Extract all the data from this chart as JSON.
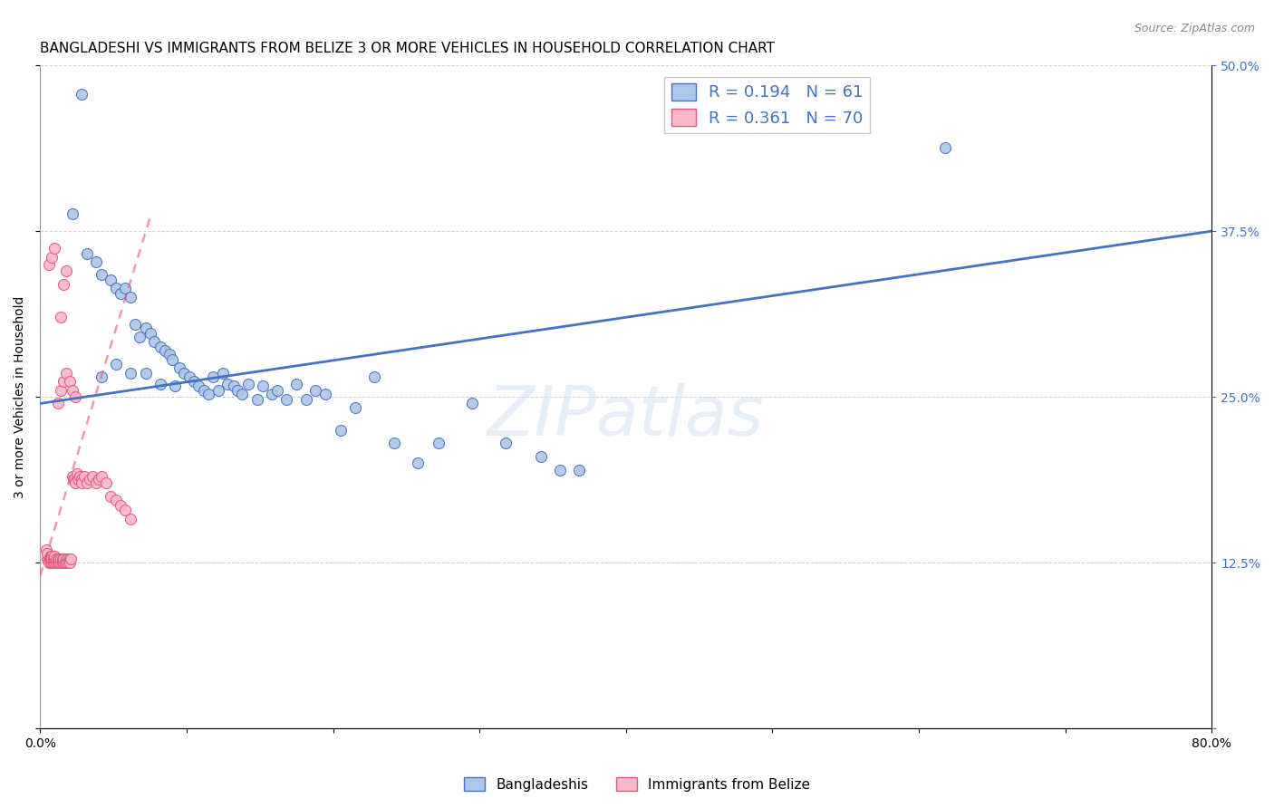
{
  "title": "BANGLADESHI VS IMMIGRANTS FROM BELIZE 3 OR MORE VEHICLES IN HOUSEHOLD CORRELATION CHART",
  "source": "Source: ZipAtlas.com",
  "ylabel": "3 or more Vehicles in Household",
  "xlim": [
    0.0,
    0.8
  ],
  "ylim": [
    0.0,
    0.5
  ],
  "xticks": [
    0.0,
    0.1,
    0.2,
    0.3,
    0.4,
    0.5,
    0.6,
    0.7,
    0.8
  ],
  "xticklabels": [
    "0.0%",
    "",
    "",
    "",
    "",
    "",
    "",
    "",
    "80.0%"
  ],
  "yticks": [
    0.0,
    0.125,
    0.25,
    0.375,
    0.5
  ],
  "yticklabels": [
    "",
    "12.5%",
    "25.0%",
    "37.5%",
    "50.0%"
  ],
  "legend_labels": [
    "Bangladeshis",
    "Immigrants from Belize"
  ],
  "series1_color": "#aec6e8",
  "series2_color": "#f9b8cc",
  "trendline1_color": "#4472c4",
  "trendline2_color": "#e8547a",
  "R1": 0.194,
  "N1": 61,
  "R2": 0.361,
  "N2": 70,
  "watermark": "ZIPatlas",
  "grid_color": "#d0d0d0",
  "title_fontsize": 11,
  "axis_label_fontsize": 10,
  "tick_fontsize": 10,
  "bangladeshis_x": [
    0.028,
    0.022,
    0.032,
    0.038,
    0.042,
    0.048,
    0.052,
    0.055,
    0.058,
    0.062,
    0.065,
    0.068,
    0.072,
    0.075,
    0.078,
    0.082,
    0.085,
    0.088,
    0.09,
    0.095,
    0.098,
    0.102,
    0.105,
    0.108,
    0.112,
    0.115,
    0.118,
    0.122,
    0.125,
    0.128,
    0.132,
    0.135,
    0.138,
    0.142,
    0.148,
    0.152,
    0.158,
    0.162,
    0.168,
    0.175,
    0.182,
    0.188,
    0.195,
    0.205,
    0.215,
    0.228,
    0.242,
    0.258,
    0.272,
    0.295,
    0.318,
    0.342,
    0.368,
    0.042,
    0.052,
    0.062,
    0.072,
    0.082,
    0.092,
    0.355,
    0.618
  ],
  "bangladeshis_y": [
    0.478,
    0.388,
    0.358,
    0.352,
    0.342,
    0.338,
    0.332,
    0.328,
    0.332,
    0.325,
    0.305,
    0.295,
    0.302,
    0.298,
    0.292,
    0.288,
    0.285,
    0.282,
    0.278,
    0.272,
    0.268,
    0.265,
    0.262,
    0.258,
    0.255,
    0.252,
    0.265,
    0.255,
    0.268,
    0.26,
    0.258,
    0.255,
    0.252,
    0.26,
    0.248,
    0.258,
    0.252,
    0.255,
    0.248,
    0.26,
    0.248,
    0.255,
    0.252,
    0.225,
    0.242,
    0.265,
    0.215,
    0.2,
    0.215,
    0.245,
    0.215,
    0.205,
    0.195,
    0.265,
    0.275,
    0.268,
    0.268,
    0.26,
    0.258,
    0.195,
    0.438
  ],
  "belize_x": [
    0.004,
    0.005,
    0.005,
    0.006,
    0.006,
    0.007,
    0.007,
    0.007,
    0.008,
    0.008,
    0.008,
    0.009,
    0.009,
    0.01,
    0.01,
    0.01,
    0.011,
    0.011,
    0.012,
    0.012,
    0.013,
    0.013,
    0.014,
    0.014,
    0.015,
    0.015,
    0.016,
    0.016,
    0.017,
    0.018,
    0.018,
    0.019,
    0.019,
    0.02,
    0.02,
    0.021,
    0.022,
    0.023,
    0.024,
    0.025,
    0.026,
    0.027,
    0.028,
    0.028,
    0.03,
    0.032,
    0.034,
    0.036,
    0.038,
    0.04,
    0.042,
    0.045,
    0.048,
    0.052,
    0.055,
    0.058,
    0.062,
    0.012,
    0.014,
    0.016,
    0.018,
    0.02,
    0.022,
    0.024,
    0.014,
    0.016,
    0.018,
    0.006,
    0.008,
    0.01
  ],
  "belize_y": [
    0.135,
    0.128,
    0.132,
    0.128,
    0.125,
    0.13,
    0.125,
    0.128,
    0.125,
    0.13,
    0.128,
    0.125,
    0.128,
    0.125,
    0.128,
    0.13,
    0.125,
    0.128,
    0.125,
    0.128,
    0.125,
    0.128,
    0.125,
    0.128,
    0.125,
    0.128,
    0.125,
    0.128,
    0.125,
    0.128,
    0.125,
    0.128,
    0.125,
    0.128,
    0.125,
    0.128,
    0.19,
    0.188,
    0.185,
    0.192,
    0.188,
    0.19,
    0.188,
    0.185,
    0.19,
    0.185,
    0.188,
    0.19,
    0.185,
    0.188,
    0.19,
    0.185,
    0.175,
    0.172,
    0.168,
    0.165,
    0.158,
    0.245,
    0.255,
    0.262,
    0.268,
    0.262,
    0.255,
    0.25,
    0.31,
    0.335,
    0.345,
    0.35,
    0.355,
    0.362
  ]
}
